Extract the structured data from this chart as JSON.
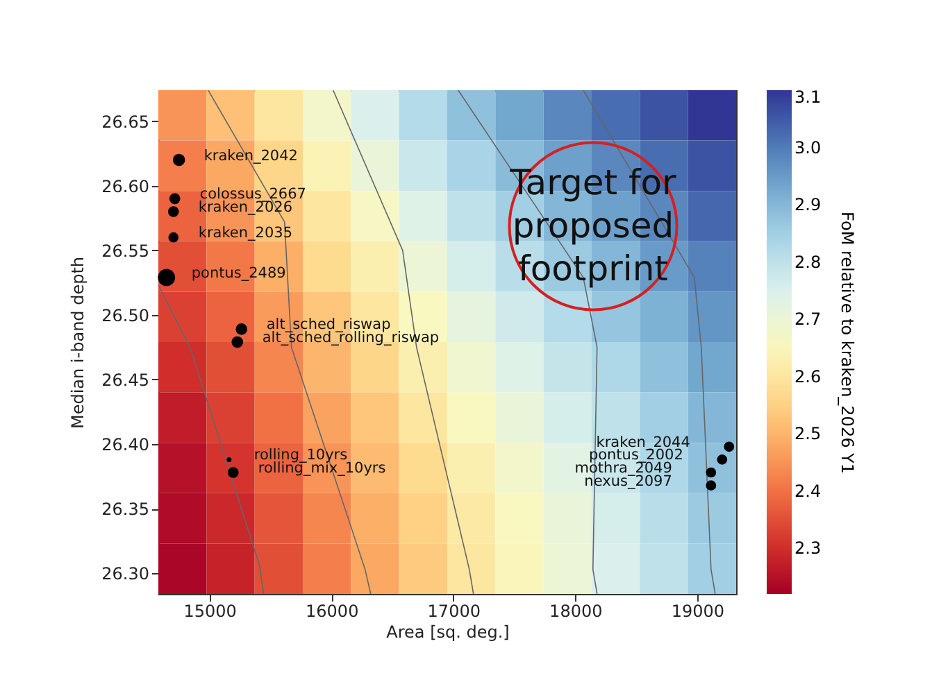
{
  "chart_data": {
    "type": "heatmap",
    "xlabel": "Area [sq. deg.]",
    "ylabel": "Median i-band depth",
    "clabel": "FoM relative to kraken_2026 Y1",
    "xlim": [
      14580,
      19320
    ],
    "ylim": [
      26.284,
      26.674
    ],
    "xticks": [
      15000,
      16000,
      17000,
      18000,
      19000
    ],
    "yticks": [
      {
        "value": 26.3,
        "label": "26.30"
      },
      {
        "value": 26.35,
        "label": "26.35"
      },
      {
        "value": 26.4,
        "label": "26.40"
      },
      {
        "value": 26.45,
        "label": "26.45"
      },
      {
        "value": 26.5,
        "label": "26.50"
      },
      {
        "value": 26.55,
        "label": "26.55"
      },
      {
        "value": 26.6,
        "label": "26.60"
      },
      {
        "value": 26.65,
        "label": "26.65"
      }
    ],
    "clim": [
      2.22,
      3.1
    ],
    "cticks": [
      2.3,
      2.4,
      2.5,
      2.6,
      2.7,
      2.8,
      2.9,
      {
        "value": 3,
        "label": "3.0"
      },
      3.1
    ],
    "x": [
      14777.5,
      15172.5,
      15567.5,
      15962.5,
      16357.5,
      16752.5,
      17147.5,
      17542.5,
      17937.5,
      18332.5,
      18727.5,
      19122.5
    ],
    "y": [
      26.6545,
      26.6155,
      26.5765,
      26.5375,
      26.4985,
      26.4595,
      26.4205,
      26.3815,
      26.3425,
      26.3035
    ],
    "cells": [
      [
        2.45,
        2.52,
        2.6,
        2.68,
        2.75,
        2.82,
        2.88,
        2.93,
        2.98,
        3.02,
        3.06,
        3.1
      ],
      [
        2.42,
        2.48,
        2.56,
        2.64,
        2.71,
        2.78,
        2.84,
        2.89,
        2.94,
        2.98,
        3.02,
        3.06
      ],
      [
        2.38,
        2.45,
        2.53,
        2.6,
        2.67,
        2.74,
        2.8,
        2.85,
        2.9,
        2.94,
        2.98,
        3.03
      ],
      [
        2.35,
        2.41,
        2.49,
        2.57,
        2.63,
        2.7,
        2.76,
        2.81,
        2.86,
        2.9,
        2.95,
        2.99
      ],
      [
        2.33,
        2.38,
        2.46,
        2.53,
        2.6,
        2.66,
        2.72,
        2.77,
        2.82,
        2.87,
        2.91,
        2.96
      ],
      [
        2.3,
        2.35,
        2.43,
        2.5,
        2.56,
        2.63,
        2.69,
        2.74,
        2.79,
        2.83,
        2.88,
        2.93
      ],
      [
        2.27,
        2.33,
        2.4,
        2.47,
        2.53,
        2.6,
        2.66,
        2.71,
        2.76,
        2.8,
        2.85,
        2.9
      ],
      [
        2.25,
        2.31,
        2.38,
        2.45,
        2.51,
        2.57,
        2.63,
        2.68,
        2.73,
        2.78,
        2.83,
        2.88
      ],
      [
        2.24,
        2.29,
        2.36,
        2.43,
        2.49,
        2.55,
        2.61,
        2.66,
        2.71,
        2.76,
        2.81,
        2.86
      ],
      [
        2.23,
        2.28,
        2.35,
        2.42,
        2.48,
        2.54,
        2.6,
        2.65,
        2.7,
        2.75,
        2.8,
        2.85
      ]
    ],
    "series": [
      {
        "type": "line",
        "color": "#666666",
        "x": [
          14580,
          14840,
          15410,
          15444
        ],
        "values": [
          26.523,
          26.475,
          26.306,
          26.284
        ]
      },
      {
        "type": "line",
        "color": "#666666",
        "x": [
          14989,
          15615,
          15672,
          16276,
          16322
        ],
        "values": [
          26.674,
          26.572,
          26.475,
          26.303,
          26.284
        ]
      },
      {
        "type": "line",
        "color": "#666666",
        "x": [
          16014,
          16584,
          16698,
          17131,
          17165
        ],
        "values": [
          26.674,
          26.55,
          26.475,
          26.303,
          26.284
        ]
      },
      {
        "type": "line",
        "color": "#666666",
        "x": [
          17040,
          18066,
          18179,
          18145,
          18179
        ],
        "values": [
          26.674,
          26.529,
          26.475,
          26.303,
          26.284
        ]
      },
      {
        "type": "line",
        "color": "#666666",
        "x": [
          18066,
          18977,
          19034,
          19114,
          19148
        ],
        "values": [
          26.674,
          26.529,
          26.475,
          26.303,
          26.284
        ]
      },
      {
        "type": "scatter",
        "color": "#000000",
        "x": [
          14749,
          14715,
          14704,
          14704,
          14647,
          15262,
          15228,
          15160,
          15194,
          19262,
          19205,
          19114,
          19114
        ],
        "values": [
          26.62,
          26.59,
          26.58,
          26.56,
          26.529,
          26.489,
          26.479,
          26.388,
          26.378,
          26.398,
          26.388,
          26.378,
          26.368
        ],
        "sizes": [
          0.5,
          0.4,
          0.4,
          0.35,
          1,
          0.45,
          0.45,
          0.08,
          0.4,
          0.35,
          0.35,
          0.35,
          0.35
        ]
      }
    ],
    "annotations": [
      "Target for\nproposed\nfootprint",
      {
        "text": "kraken_2042",
        "x": 14749,
        "y": 26.62
      },
      {
        "text": "colossus_2667",
        "x": 14715,
        "y": 26.59
      },
      {
        "text": "kraken_2026",
        "x": 14704,
        "y": 26.58
      },
      {
        "text": "kraken_2035",
        "x": 14704,
        "y": 26.56
      },
      {
        "text": "pontus_2489",
        "x": 14647,
        "y": 26.529
      },
      {
        "text": "alt_sched_riswap",
        "x": 15262,
        "y": 26.489
      },
      {
        "text": "alt_sched_rolling_riswap",
        "x": 15228,
        "y": 26.479
      },
      {
        "text": "rolling_10yrs",
        "x": 15160,
        "y": 26.388
      },
      {
        "text": "rolling_mix_10yrs",
        "x": 15194,
        "y": 26.378
      },
      {
        "text": "kraken_2044",
        "x": 19262,
        "y": 26.398
      },
      {
        "text": "pontus_2002",
        "x": 19205,
        "y": 26.388
      },
      {
        "text": "mothra_2049",
        "x": 19114,
        "y": 26.378
      },
      {
        "text": "nexus_2097",
        "x": 19114,
        "y": 26.368
      }
    ]
  }
}
